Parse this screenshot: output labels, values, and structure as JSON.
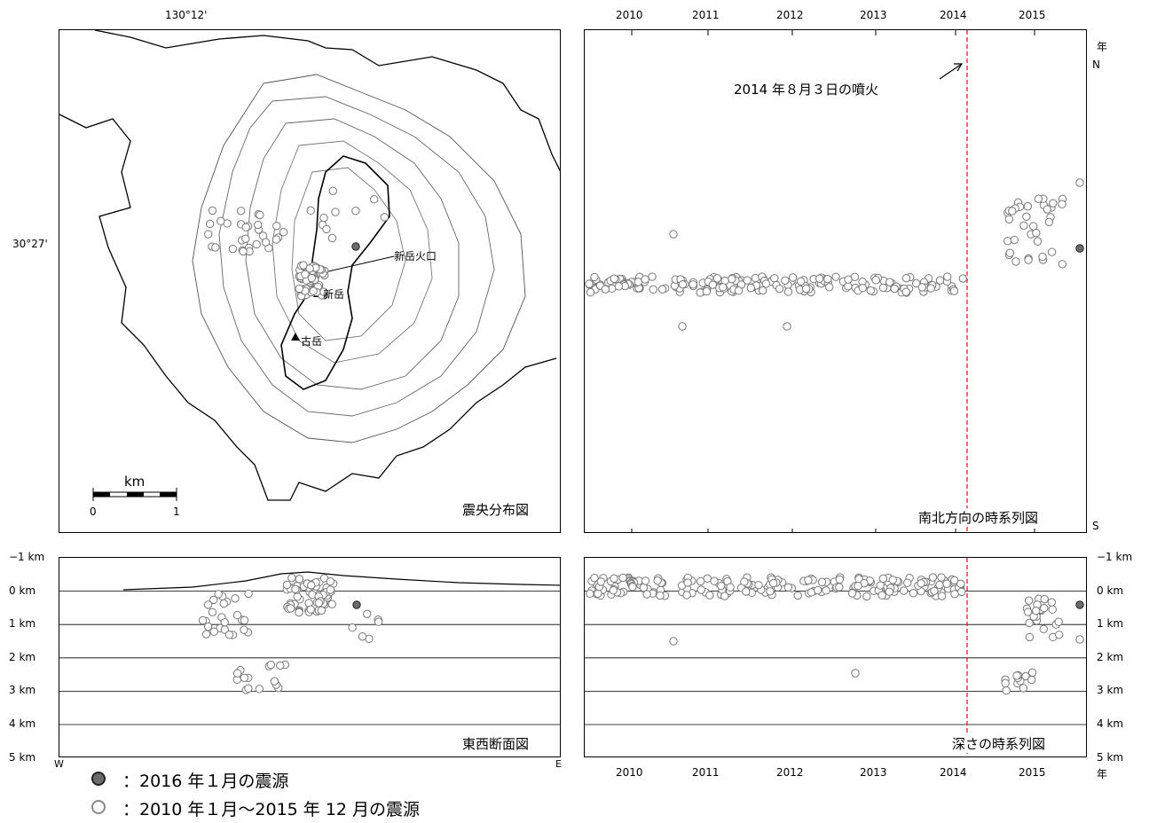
{
  "map": {
    "title": "震央分布図",
    "lon_label": "130°12'",
    "lat_label": "30°27'",
    "crater_label": "新岳火口",
    "peak_shindake": "新岳",
    "peak_furudake": "古岳",
    "scale": {
      "unit": "km",
      "left": "0",
      "right": "1"
    }
  },
  "ns_panel": {
    "title": "南北方向の時系列図",
    "year_unit": "年",
    "north": "N",
    "south": "S",
    "eruption_label": "2014 年８月３日の噴火"
  },
  "ew_panel": {
    "title": "東西断面図",
    "west": "W",
    "east": "E",
    "depth_labels": [
      "−1 km",
      "0 km",
      "1 km",
      "2 km",
      "3 km",
      "4 km",
      "5 km"
    ]
  },
  "depth_panel": {
    "title": "深さの時系列図",
    "year_unit": "年",
    "depth_labels": [
      "−1 km",
      "0 km",
      "1 km",
      "2 km",
      "3 km",
      "4 km",
      "5 km"
    ]
  },
  "years": [
    "2010",
    "2011",
    "2012",
    "2013",
    "2014",
    "2015"
  ],
  "legend": [
    {
      "label": "：2016 年１月の震源",
      "color": "#6b6b6b"
    },
    {
      "label": "：2010 年１月～2015 年 12 月の震源",
      "color": "#ffffff"
    }
  ],
  "colors": {
    "eruption_line": "#e0202a",
    "recent_event": "#6b6b6b",
    "old_event": "#ffffff"
  },
  "chart_data": {
    "type": "scatter",
    "series": [
      {
        "name": "2016 年１月の震源",
        "depth_km": [
          0.4
        ],
        "year": [
          2016.05
        ]
      },
      {
        "name": "2010 年１月～2015 年 12 月の震源"
      }
    ],
    "eruption_date": "2014-08-03",
    "depth_range_km": [
      -1,
      5
    ],
    "year_range": [
      2010,
      2016
    ]
  }
}
